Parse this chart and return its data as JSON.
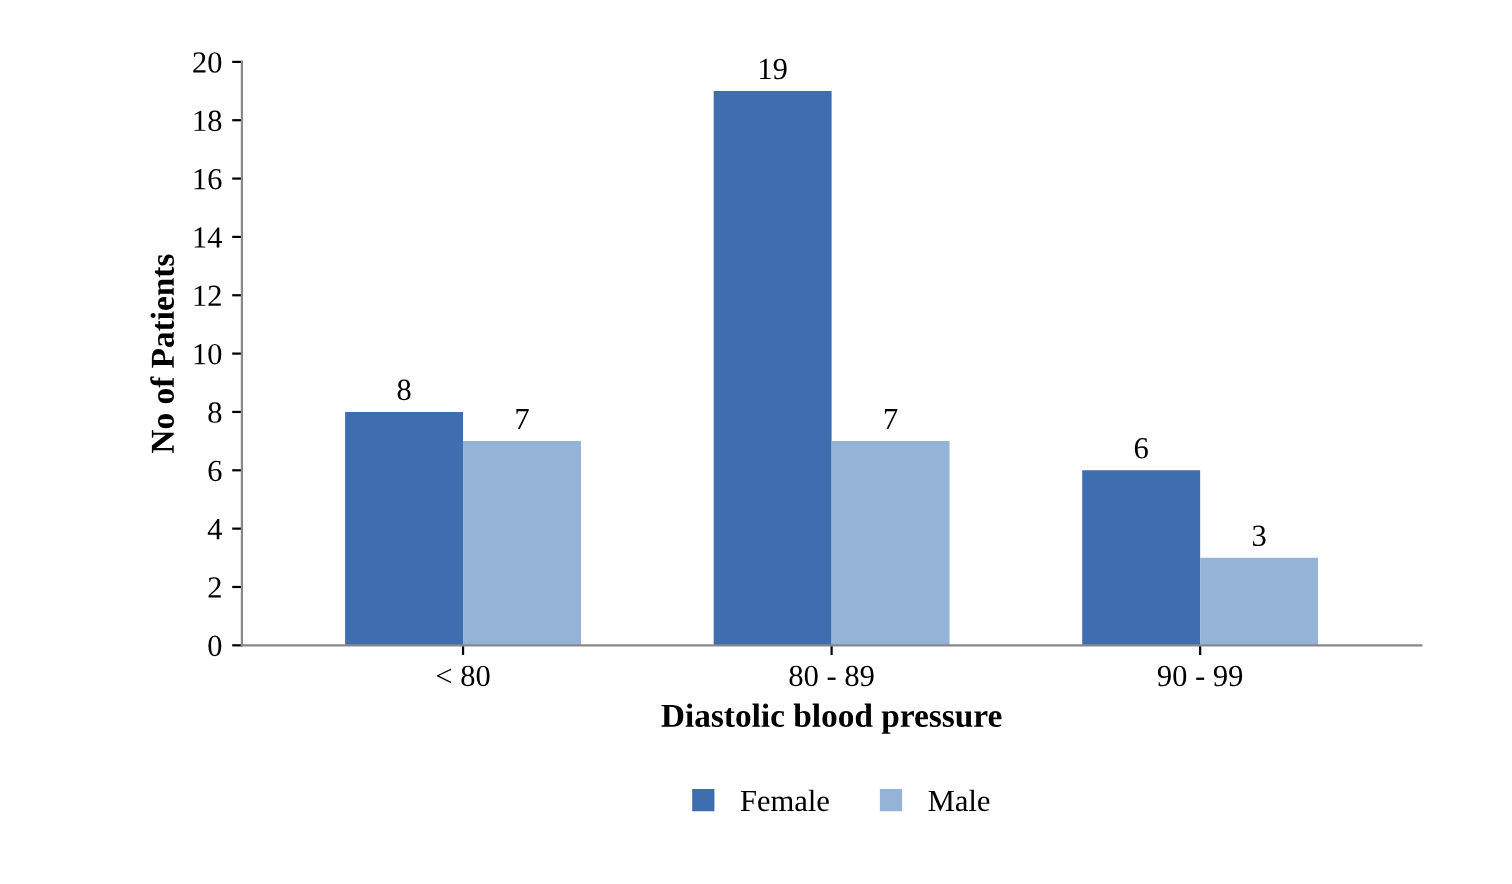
{
  "chart_data": {
    "type": "bar",
    "xlabel": "Diastolic blood pressure",
    "ylabel": "No of Patients",
    "categories": [
      "< 80",
      "80 - 89",
      "90 - 99"
    ],
    "series": [
      {
        "name": "Female",
        "color": "#3f6eb0",
        "values": [
          8,
          19,
          6
        ]
      },
      {
        "name": "Male",
        "color": "#95b3d7",
        "values": [
          7,
          7,
          3
        ]
      }
    ],
    "ylim": [
      0,
      20
    ],
    "yticks": [
      0,
      2,
      4,
      6,
      8,
      10,
      12,
      14,
      16,
      18,
      20
    ],
    "grid": false,
    "legend": "bottom",
    "data_labels": true
  }
}
